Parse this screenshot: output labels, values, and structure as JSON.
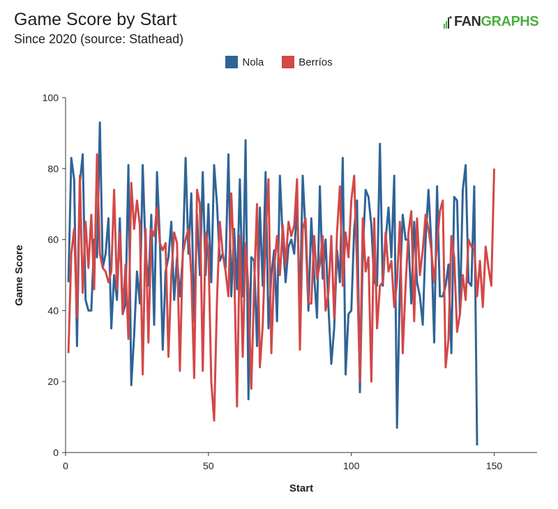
{
  "header": {
    "title": "Game Score by Start",
    "subtitle": "Since 2020 (source: Stathead)",
    "logo_fan": "FAN",
    "logo_graphs": "GRAPHS"
  },
  "colors": {
    "nola": "#2f6497",
    "berrios": "#d34848",
    "brand_green": "#4cae3f"
  },
  "chart_data": {
    "type": "line",
    "xlabel": "Start",
    "ylabel": "Game Score",
    "xlim": [
      0,
      165
    ],
    "ylim": [
      0,
      100
    ],
    "xticks": [
      0,
      50,
      100,
      150
    ],
    "yticks": [
      0,
      20,
      40,
      60,
      80,
      100
    ],
    "grid": false,
    "legend": "top-center",
    "series": [
      {
        "name": "Nola",
        "color": "#2f6497",
        "values": [
          48,
          83,
          77,
          30,
          76,
          84,
          43,
          40,
          40,
          60,
          55,
          93,
          52,
          56,
          66,
          35,
          50,
          43,
          66,
          39,
          42,
          81,
          19,
          33,
          51,
          42,
          81,
          57,
          47,
          67,
          36,
          79,
          60,
          29,
          51,
          55,
          65,
          43,
          55,
          44,
          55,
          83,
          56,
          73,
          37,
          67,
          50,
          79,
          50,
          70,
          48,
          81,
          70,
          54,
          56,
          52,
          84,
          44,
          63,
          46,
          77,
          44,
          88,
          15,
          55,
          54,
          30,
          69,
          47,
          79,
          35,
          50,
          57,
          37,
          78,
          60,
          48,
          58,
          60,
          56,
          70,
          41,
          78,
          62,
          40,
          66,
          50,
          38,
          75,
          49,
          60,
          41,
          25,
          35,
          57,
          48,
          83,
          22,
          39,
          40,
          63,
          71,
          17,
          56,
          74,
          72,
          64,
          48,
          47,
          87,
          47,
          60,
          69,
          55,
          78,
          7,
          47,
          67,
          60,
          60,
          42,
          65,
          48,
          44,
          36,
          60,
          74,
          59,
          31,
          75,
          44,
          44,
          47,
          53,
          28,
          72,
          71,
          39,
          74,
          81,
          48,
          47,
          75,
          2
        ]
      },
      {
        "name": "Berríos",
        "color": "#d34848",
        "values": [
          28,
          56,
          63,
          38,
          78,
          45,
          65,
          52,
          67,
          46,
          84,
          56,
          52,
          51,
          48,
          51,
          74,
          46,
          62,
          39,
          53,
          32,
          76,
          63,
          71,
          64,
          22,
          63,
          31,
          63,
          61,
          69,
          59,
          57,
          59,
          27,
          50,
          62,
          59,
          23,
          56,
          60,
          63,
          50,
          21,
          74,
          70,
          23,
          62,
          57,
          20,
          9,
          43,
          65,
          56,
          51,
          44,
          73,
          53,
          13,
          61,
          27,
          59,
          46,
          18,
          47,
          70,
          24,
          36,
          61,
          77,
          28,
          52,
          61,
          50,
          64,
          53,
          65,
          61,
          64,
          77,
          29,
          63,
          66,
          42,
          42,
          61,
          49,
          53,
          61,
          40,
          45,
          61,
          38,
          62,
          75,
          47,
          62,
          55,
          71,
          78,
          52,
          20,
          66,
          51,
          55,
          20,
          66,
          35,
          47,
          48,
          62,
          51,
          54,
          41,
          48,
          65,
          28,
          47,
          62,
          68,
          37,
          66,
          50,
          57,
          67,
          63,
          57,
          48,
          59,
          68,
          71,
          24,
          32,
          61,
          55,
          34,
          39,
          50,
          43,
          60,
          58,
          58,
          44,
          54,
          41,
          58,
          52,
          47,
          80
        ]
      }
    ]
  }
}
